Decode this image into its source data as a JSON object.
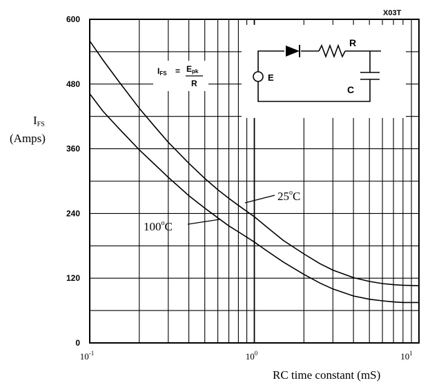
{
  "chart_data": {
    "type": "line",
    "corner_code": "X03T",
    "ylabel": "I",
    "ylabel_sub": "FS",
    "ylabel_unit": "(Amps)",
    "xlabel": "RC time constant (mS)",
    "xscale": "log",
    "xlim": [
      0.1,
      10
    ],
    "ylim": [
      0,
      600
    ],
    "yticks": [
      "600",
      "480",
      "360",
      "240",
      "120",
      "0"
    ],
    "xticks": [
      {
        "base": "10",
        "exp": "-1"
      },
      {
        "base": "10",
        "exp": "0"
      },
      {
        "base": "10",
        "exp": "1"
      }
    ],
    "grid": true,
    "series": [
      {
        "name": "25°C",
        "label_base": "25",
        "label_unit": "C",
        "x": [
          0.1,
          0.12,
          0.15,
          0.2,
          0.25,
          0.3,
          0.4,
          0.5,
          0.6,
          0.7,
          0.8,
          1.0,
          1.2,
          1.5,
          2.0,
          2.5,
          3.0,
          4.0,
          5.0,
          6.0,
          7.0,
          8.0,
          10.0
        ],
        "y": [
          560,
          525,
          485,
          435,
          400,
          372,
          333,
          305,
          284,
          268,
          255,
          234,
          214,
          190,
          165,
          147,
          135,
          121,
          114,
          110,
          108,
          107,
          106
        ]
      },
      {
        "name": "100°C",
        "label_base": "100",
        "label_unit": "C",
        "x": [
          0.1,
          0.12,
          0.15,
          0.2,
          0.25,
          0.3,
          0.4,
          0.5,
          0.6,
          0.7,
          0.8,
          1.0,
          1.2,
          1.5,
          2.0,
          2.5,
          3.0,
          4.0,
          5.0,
          6.0,
          7.0,
          8.0,
          10.0
        ],
        "y": [
          462,
          430,
          398,
          358,
          330,
          307,
          273,
          250,
          232,
          217,
          206,
          187,
          170,
          150,
          127,
          111,
          100,
          87,
          81,
          78,
          76,
          75,
          75
        ]
      }
    ],
    "inset": {
      "formula_lhs": "I",
      "formula_lhs_sub": "FS",
      "formula_eq": "=",
      "formula_num": "E",
      "formula_num_sub": "pk",
      "formula_den": "R",
      "source_label": "E",
      "resistor_label": "R",
      "capacitor_label": "C"
    }
  }
}
